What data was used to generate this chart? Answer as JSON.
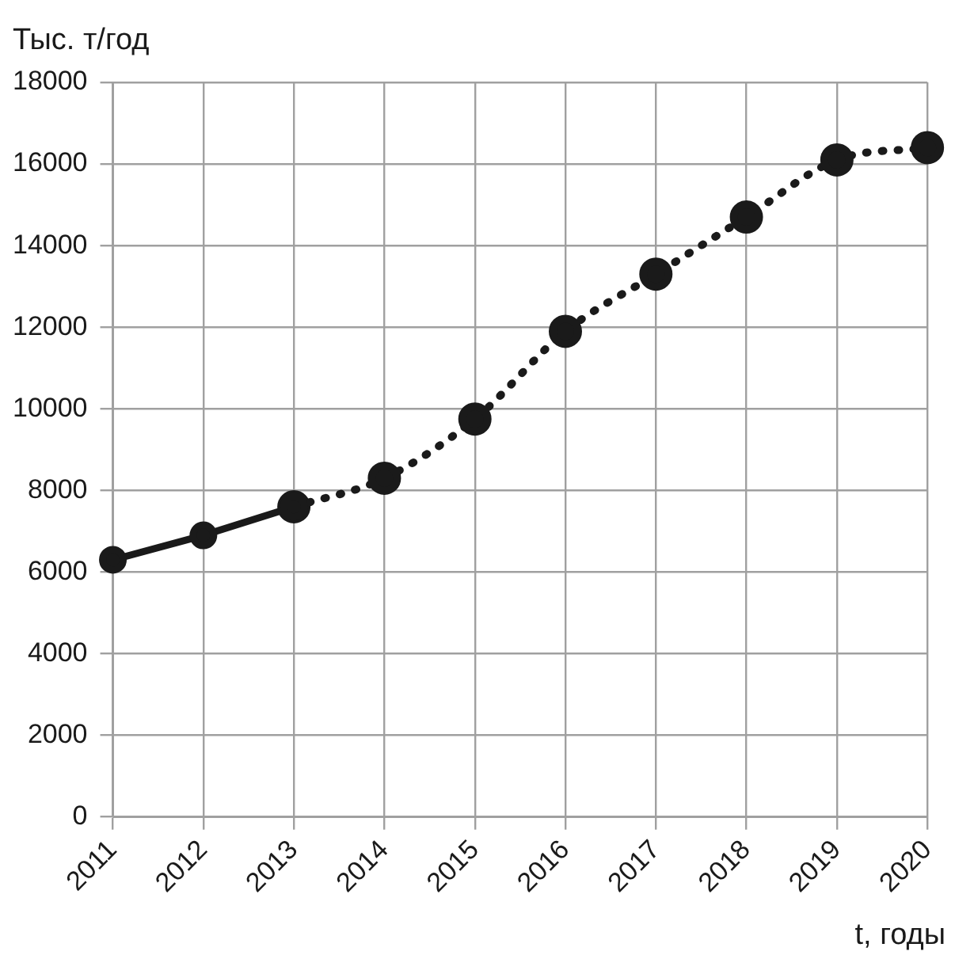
{
  "chart_data": {
    "type": "line",
    "ylabel": "Тыс. т/год",
    "xlabel": "t, годы",
    "categories": [
      "2011",
      "2012",
      "2013",
      "2014",
      "2015",
      "2016",
      "2017",
      "2018",
      "2019",
      "2020"
    ],
    "series": [
      {
        "color": "#1a1a1a",
        "line_style": "solid",
        "values": [
          6300,
          6900,
          7600,
          null,
          null,
          null,
          null,
          null,
          null,
          null
        ]
      },
      {
        "color": "#1a1a1a",
        "line_style": "dotted",
        "values": [
          null,
          null,
          7600,
          8300,
          9750,
          11900,
          13300,
          14700,
          16100,
          16400
        ]
      }
    ],
    "ylim": [
      0,
      18000
    ],
    "yticks": [
      0,
      2000,
      4000,
      6000,
      8000,
      10000,
      12000,
      14000,
      16000,
      18000
    ],
    "grid": true,
    "marker": "circle",
    "legend": false
  }
}
